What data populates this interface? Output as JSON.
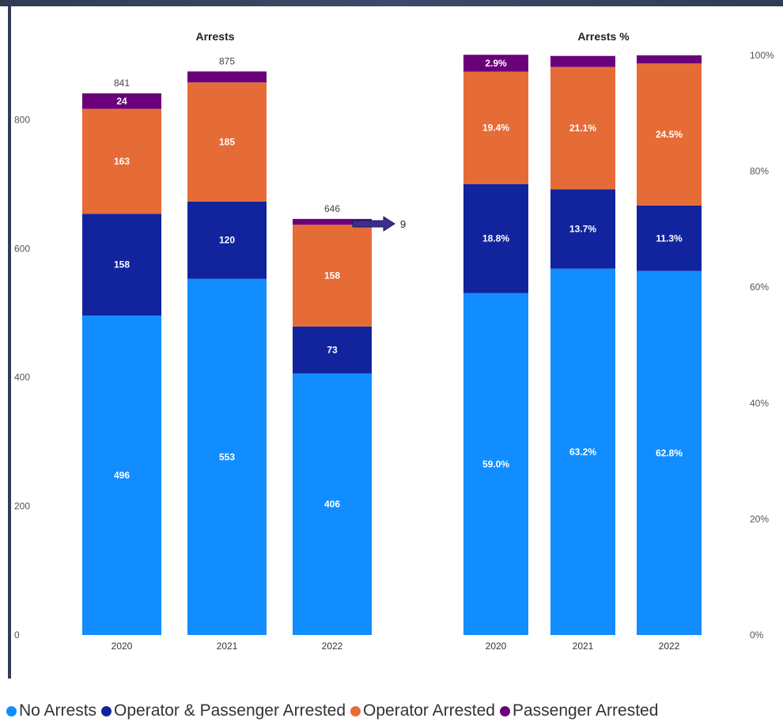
{
  "legend": [
    {
      "label": "No Arrests",
      "color": "#118dff"
    },
    {
      "label": "Operator & Passenger Arrested",
      "color": "#12239e"
    },
    {
      "label": "Operator Arrested",
      "color": "#e66c37"
    },
    {
      "label": "Passenger Arrested",
      "color": "#6b007b"
    }
  ],
  "chart_data": [
    {
      "type": "bar",
      "stacked": true,
      "title": "Arrests",
      "categories": [
        "2020",
        "2021",
        "2022"
      ],
      "series": [
        {
          "name": "No Arrests",
          "color": "#118dff",
          "values": [
            496,
            553,
            406
          ],
          "labels": [
            "496",
            "553",
            "406"
          ]
        },
        {
          "name": "Operator & Passenger Arrested",
          "color": "#12239e",
          "values": [
            158,
            120,
            73
          ],
          "labels": [
            "158",
            "120",
            "73"
          ]
        },
        {
          "name": "Operator Arrested",
          "color": "#e66c37",
          "values": [
            163,
            185,
            158
          ],
          "labels": [
            "163",
            "185",
            "158"
          ]
        },
        {
          "name": "Passenger Arrested",
          "color": "#6b007b",
          "values": [
            24,
            17,
            9
          ],
          "labels": [
            "24",
            "",
            ""
          ]
        }
      ],
      "totals": [
        "841",
        "875",
        "646"
      ],
      "callout": {
        "text": "9"
      },
      "ylim": [
        0,
        900
      ],
      "yticks": [
        "0",
        "200",
        "400",
        "600",
        "800"
      ],
      "ytick_values": [
        0,
        200,
        400,
        600,
        800
      ],
      "grid": false
    },
    {
      "type": "bar",
      "stacked": true,
      "percent": true,
      "title": "Arrests %",
      "categories": [
        "2020",
        "2021",
        "2022"
      ],
      "series": [
        {
          "name": "No Arrests",
          "color": "#118dff",
          "values": [
            59.0,
            63.2,
            62.8
          ],
          "labels": [
            "59.0%",
            "63.2%",
            "62.8%"
          ]
        },
        {
          "name": "Operator & Passenger Arrested",
          "color": "#12239e",
          "values": [
            18.8,
            13.7,
            11.3
          ],
          "labels": [
            "18.8%",
            "13.7%",
            "11.3%"
          ]
        },
        {
          "name": "Operator Arrested",
          "color": "#e66c37",
          "values": [
            19.4,
            21.1,
            24.5
          ],
          "labels": [
            "19.4%",
            "21.1%",
            "24.5%"
          ]
        },
        {
          "name": "Passenger Arrested",
          "color": "#6b007b",
          "values": [
            2.9,
            1.9,
            1.4
          ],
          "labels": [
            "2.9%",
            "",
            ""
          ]
        }
      ],
      "ylim": [
        0,
        100
      ],
      "yticks": [
        "0%",
        "20%",
        "40%",
        "60%",
        "80%",
        "100%"
      ],
      "ytick_values": [
        0,
        20,
        40,
        60,
        80,
        100
      ],
      "grid": false
    }
  ]
}
